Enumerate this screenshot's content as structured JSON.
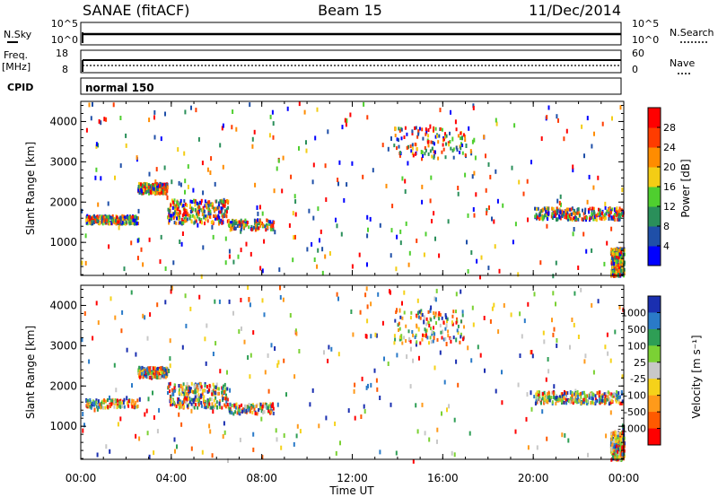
{
  "header": {
    "station": "SANAE (fitACF)",
    "beam": "Beam 15",
    "date": "11/Dec/2014"
  },
  "noise_panel": {
    "left_label": "N.Sky",
    "right_label": "N.Search",
    "left_ticks": [
      "10^5",
      "10^0"
    ],
    "right_ticks": [
      "10^5",
      "10^0"
    ]
  },
  "freq_panel": {
    "left_label_1": "Freq.",
    "left_label_2": "[MHz]",
    "left_ticks": [
      "18",
      "8"
    ],
    "right_label": "Nave",
    "right_ticks": [
      "60",
      "0"
    ]
  },
  "cpid_panel": {
    "label": "CPID",
    "value": "normal 150"
  },
  "chart_data": [
    {
      "type": "heatmap",
      "name": "power",
      "ylabel": "Slant Range [km]",
      "ylim": [
        180,
        4500
      ],
      "yticks": [
        1000,
        2000,
        3000,
        4000
      ],
      "xlim": [
        0,
        24
      ],
      "colorbar_label": "Power [dB]",
      "colorbar_ticks": [
        "4",
        "8",
        "12",
        "16",
        "20",
        "24",
        "28"
      ],
      "colorbar_colors": [
        "#0000ff",
        "#1f4fa8",
        "#2a8f5a",
        "#4fcf2f",
        "#f3cd15",
        "#ff8c00",
        "#ff3c00",
        "#ff0000"
      ],
      "regions": [
        {
          "t_start": 0.2,
          "t_end": 2.5,
          "r_start": 1500,
          "r_end": 1700,
          "density": "high"
        },
        {
          "t_start": 2.5,
          "t_end": 3.8,
          "r_start": 2250,
          "r_end": 2500,
          "density": "high"
        },
        {
          "t_start": 3.8,
          "t_end": 6.5,
          "r_start": 1500,
          "r_end": 2100,
          "density": "high"
        },
        {
          "t_start": 6.5,
          "t_end": 8.5,
          "r_start": 1350,
          "r_end": 1600,
          "density": "medium"
        },
        {
          "t_start": 13.8,
          "t_end": 17.0,
          "r_start": 3100,
          "r_end": 3900,
          "density": "medium"
        },
        {
          "t_start": 20.0,
          "t_end": 24.0,
          "r_start": 1600,
          "r_end": 1900,
          "density": "high"
        },
        {
          "t_start": 23.4,
          "t_end": 24.0,
          "r_start": 200,
          "r_end": 900,
          "density": "high"
        }
      ]
    },
    {
      "type": "heatmap",
      "name": "velocity",
      "ylabel": "Slant Range [km]",
      "ylim": [
        180,
        4500
      ],
      "yticks": [
        1000,
        2000,
        3000,
        4000
      ],
      "xlim": [
        0,
        24
      ],
      "xlabel": "Time UT",
      "xticks": [
        "00:00",
        "04:00",
        "08:00",
        "12:00",
        "16:00",
        "20:00",
        "00:00"
      ],
      "colorbar_label": "Velocity [m s⁻¹]",
      "colorbar_ticks": [
        "1000",
        "500",
        "100",
        "25",
        "-25",
        "-100",
        "-500",
        "-1000"
      ],
      "colorbar_colors": [
        "#1a2fb0",
        "#2a7ac8",
        "#2e9e55",
        "#7bd134",
        "#c8c8c8",
        "#f5d21a",
        "#ff9a1a",
        "#ff5a00",
        "#ff0000"
      ],
      "regions": [
        {
          "t_start": 0.2,
          "t_end": 2.5,
          "r_start": 1500,
          "r_end": 1700,
          "density": "medium"
        },
        {
          "t_start": 2.5,
          "t_end": 3.8,
          "r_start": 2250,
          "r_end": 2500,
          "density": "high"
        },
        {
          "t_start": 3.8,
          "t_end": 6.5,
          "r_start": 1500,
          "r_end": 2100,
          "density": "high"
        },
        {
          "t_start": 6.5,
          "t_end": 8.5,
          "r_start": 1350,
          "r_end": 1600,
          "density": "medium"
        },
        {
          "t_start": 13.8,
          "t_end": 17.0,
          "r_start": 3100,
          "r_end": 3900,
          "density": "medium"
        },
        {
          "t_start": 20.0,
          "t_end": 24.0,
          "r_start": 1600,
          "r_end": 1900,
          "density": "high"
        },
        {
          "t_start": 23.4,
          "t_end": 24.0,
          "r_start": 200,
          "r_end": 900,
          "density": "high"
        }
      ]
    }
  ]
}
